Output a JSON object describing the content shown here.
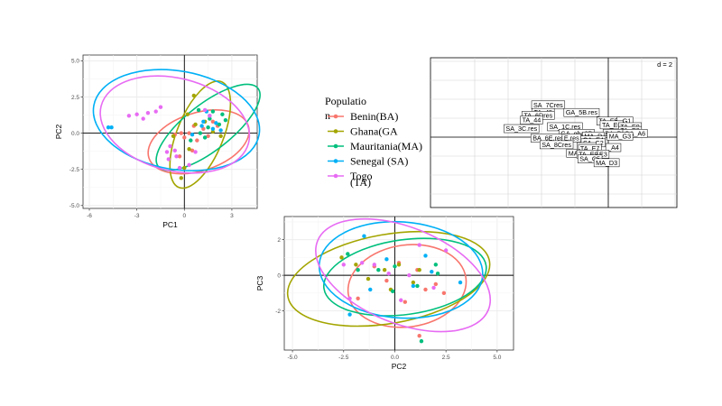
{
  "legend": {
    "title_line1": "Populatio",
    "title_line2": "n",
    "entries": [
      {
        "label": "Benin(BA)",
        "color": "#F8766D"
      },
      {
        "label": "Ghana(GA",
        "color": "#A3A500"
      },
      {
        "label": "Mauritania(MA)",
        "color": "#00BF7D"
      },
      {
        "label": "Senegal (SA)",
        "color": "#00B0F6"
      },
      {
        "label": "Togo",
        "color": "#E76BF3"
      }
    ],
    "extra_line": "(TA)"
  },
  "chart_data": [
    {
      "type": "scatter",
      "xlabel": "PC1",
      "ylabel": "PC2",
      "xlim": [
        -6.4,
        4.6
      ],
      "ylim": [
        -5.2,
        5.4
      ],
      "xticks": [
        -6,
        -3,
        0,
        3
      ],
      "yticks": [
        -5.0,
        -2.5,
        0.0,
        2.5,
        5.0
      ],
      "ytick_labels": [
        "-5.0",
        "-2.5",
        "0.0",
        "2.5",
        "5.0"
      ],
      "grid": true,
      "series": [
        {
          "name": "Benin(BA)",
          "color": "#F8766D",
          "points": [
            [
              -0.2,
              0.0
            ],
            [
              0.3,
              0.0
            ],
            [
              1.2,
              0.3
            ],
            [
              0.8,
              -0.5
            ],
            [
              1.8,
              0.8
            ],
            [
              -0.6,
              -0.1
            ],
            [
              0.5,
              -1.2
            ],
            [
              1.5,
              -0.2
            ],
            [
              0.0,
              -0.3
            ],
            [
              -0.3,
              -1.6
            ],
            [
              0.6,
              0.5
            ],
            [
              2.1,
              0.5
            ]
          ],
          "ellipse": {
            "cx": 0.9,
            "cy": -0.6,
            "rx": 3.3,
            "ry": 2.0,
            "angle": 18
          }
        },
        {
          "name": "Ghana(GA",
          "color": "#A3A500",
          "points": [
            [
              -0.7,
              -0.2
            ],
            [
              0.3,
              -1.1
            ],
            [
              0.0,
              -2.4
            ],
            [
              0.7,
              0.6
            ],
            [
              1.3,
              0.8
            ],
            [
              2.3,
              -0.2
            ],
            [
              0.6,
              2.6
            ],
            [
              -0.2,
              -3.1
            ],
            [
              1.8,
              0.1
            ],
            [
              0.2,
              1.3
            ]
          ],
          "ellipse": {
            "cx": 1.0,
            "cy": -0.1,
            "rx": 3.6,
            "ry": 1.6,
            "angle": 68
          }
        },
        {
          "name": "Mauritania(MA)",
          "color": "#00BF7D",
          "points": [
            [
              1.0,
              0.0
            ],
            [
              1.6,
              1.0
            ],
            [
              2.2,
              0.6
            ],
            [
              0.4,
              -0.5
            ],
            [
              1.8,
              1.5
            ],
            [
              2.4,
              1.3
            ],
            [
              0.9,
              1.6
            ],
            [
              1.3,
              -0.3
            ],
            [
              2.6,
              0.9
            ],
            [
              1.5,
              0.4
            ]
          ],
          "ellipse": {
            "cx": 1.5,
            "cy": 0.4,
            "rx": 4.0,
            "ry": 1.6,
            "angle": 38
          }
        },
        {
          "name": "Senegal (SA)",
          "color": "#00B0F6",
          "points": [
            [
              -4.8,
              0.4
            ],
            [
              -4.6,
              0.4
            ],
            [
              1.2,
              0.8
            ],
            [
              1.8,
              0.3
            ],
            [
              1.6,
              1.2
            ],
            [
              2.0,
              0.7
            ],
            [
              2.3,
              0.2
            ],
            [
              1.4,
              1.5
            ],
            [
              0.5,
              -0.1
            ],
            [
              1.1,
              0.5
            ]
          ],
          "ellipse": {
            "cx": -0.5,
            "cy": 0.9,
            "rx": 5.3,
            "ry": 3.4,
            "angle": -10
          }
        },
        {
          "name": "Togo",
          "color": "#E76BF3",
          "points": [
            [
              -3.5,
              1.2
            ],
            [
              -3.0,
              1.3
            ],
            [
              -2.6,
              1.0
            ],
            [
              -2.3,
              1.4
            ],
            [
              -1.8,
              1.5
            ],
            [
              -1.5,
              1.8
            ],
            [
              -1.1,
              -1.3
            ],
            [
              -0.5,
              -1.6
            ],
            [
              -0.9,
              -0.9
            ],
            [
              -0.3,
              -2.4
            ],
            [
              0.3,
              -2.2
            ],
            [
              1.3,
              1.6
            ],
            [
              1.6,
              1.2
            ],
            [
              0.7,
              -1.3
            ],
            [
              -1.0,
              -1.8
            ],
            [
              -0.6,
              -1.2
            ]
          ],
          "ellipse": {
            "cx": -0.6,
            "cy": 0.6,
            "rx": 4.8,
            "ry": 3.2,
            "angle": -14
          }
        }
      ]
    },
    {
      "type": "scatter",
      "xlabel": "PC2",
      "ylabel": "PC3",
      "xlim": [
        -5.4,
        5.8
      ],
      "ylim": [
        -4.2,
        3.3
      ],
      "xticks": [
        -5.0,
        -2.5,
        0.0,
        2.5,
        5.0
      ],
      "xtick_labels": [
        "-5.0",
        "-2.5",
        "0.0",
        "2.5",
        "5.0"
      ],
      "yticks": [
        -2,
        0,
        2
      ],
      "grid": true,
      "series": [
        {
          "name": "Benin(BA)",
          "color": "#F8766D",
          "points": [
            [
              -1.0,
              0.5
            ],
            [
              -0.4,
              -0.3
            ],
            [
              0.2,
              0.7
            ],
            [
              1.1,
              0.3
            ],
            [
              1.5,
              -0.8
            ],
            [
              2.0,
              -0.5
            ],
            [
              -1.8,
              -1.3
            ],
            [
              0.5,
              -1.5
            ],
            [
              2.4,
              -1.0
            ],
            [
              1.2,
              -3.4
            ]
          ],
          "ellipse": {
            "cx": 0.6,
            "cy": -0.6,
            "rx": 2.9,
            "ry": 2.3,
            "angle": 8
          }
        },
        {
          "name": "Ghana(GA",
          "color": "#A3A500",
          "points": [
            [
              -2.6,
              1.0
            ],
            [
              -1.9,
              0.6
            ],
            [
              -0.5,
              0.3
            ],
            [
              0.2,
              0.6
            ],
            [
              0.9,
              -0.4
            ],
            [
              -0.2,
              -0.8
            ],
            [
              1.2,
              0.3
            ],
            [
              -1.3,
              -0.2
            ]
          ],
          "ellipse": {
            "cx": -0.3,
            "cy": -0.2,
            "rx": 5.0,
            "ry": 2.5,
            "angle": 10
          }
        },
        {
          "name": "Mauritania(MA)",
          "color": "#00BF7D",
          "points": [
            [
              -2.3,
              1.2
            ],
            [
              -1.8,
              0.3
            ],
            [
              0.0,
              0.5
            ],
            [
              1.1,
              -0.6
            ],
            [
              2.1,
              0.1
            ],
            [
              -0.1,
              -0.9
            ],
            [
              1.3,
              -3.7
            ],
            [
              -0.8,
              0.3
            ],
            [
              2.0,
              0.6
            ]
          ],
          "ellipse": {
            "cx": 0.5,
            "cy": -0.1,
            "rx": 4.0,
            "ry": 2.1,
            "angle": 8
          }
        },
        {
          "name": "Senegal (SA)",
          "color": "#00B0F6",
          "points": [
            [
              -1.5,
              2.2
            ],
            [
              1.5,
              1.1
            ],
            [
              -2.2,
              -2.2
            ],
            [
              0.9,
              -0.6
            ],
            [
              3.2,
              -0.4
            ],
            [
              -0.4,
              0.9
            ],
            [
              1.8,
              0.2
            ],
            [
              -1.2,
              -0.8
            ]
          ],
          "ellipse": {
            "cx": 0.3,
            "cy": 0.3,
            "rx": 4.0,
            "ry": 2.7,
            "angle": -4
          }
        },
        {
          "name": "Togo",
          "color": "#E76BF3",
          "points": [
            [
              -2.5,
              0.6
            ],
            [
              -1.0,
              0.6
            ],
            [
              -0.3,
              0.1
            ],
            [
              0.7,
              0.0
            ],
            [
              1.2,
              1.7
            ],
            [
              1.9,
              -0.7
            ],
            [
              2.5,
              1.4
            ],
            [
              -1.6,
              0.7
            ],
            [
              -2.2,
              -1.3
            ],
            [
              0.3,
              -1.4
            ]
          ],
          "ellipse": {
            "cx": 0.4,
            "cy": 0.0,
            "rx": 4.5,
            "ry": 2.7,
            "angle": -22
          }
        }
      ]
    },
    {
      "type": "scatter",
      "scale_label": "d = 2",
      "labels": [
        {
          "text": "SA_7Cres",
          "x": -3.6,
          "y": 3.4
        },
        {
          "text": "TA_45",
          "x": -3.9,
          "y": 2.6
        },
        {
          "text": "TA_6Dres",
          "x": -4.2,
          "y": 2.3
        },
        {
          "text": "GA_5B.res",
          "x": -1.6,
          "y": 2.6
        },
        {
          "text": "TA_44",
          "x": -4.6,
          "y": 1.8
        },
        {
          "text": "SA_3C.res",
          "x": -5.2,
          "y": 0.9
        },
        {
          "text": "SA_1C.res",
          "x": -2.6,
          "y": 1.1
        },
        {
          "text": "TA_E5",
          "x": 0.0,
          "y": 1.7
        },
        {
          "text": "_G1",
          "x": 1.0,
          "y": 1.7
        },
        {
          "text": "TA_E6",
          "x": 0.2,
          "y": 1.3
        },
        {
          "text": "TA_E8",
          "x": 1.3,
          "y": 1.1
        },
        {
          "text": "TA_E2",
          "x": 1.3,
          "y": 0.7
        },
        {
          "text": "GA_gha3B",
          "x": -1.9,
          "y": 0.4
        },
        {
          "text": "BA_B2",
          "x": 0.4,
          "y": 0.4
        },
        {
          "text": "GA_A6",
          "x": 1.6,
          "y": 0.4
        },
        {
          "text": "MA_D",
          "x": -0.9,
          "y": 0.1
        },
        {
          "text": "MA_G3",
          "x": 0.7,
          "y": 0.1
        },
        {
          "text": "BA_6E.res",
          "x": -3.6,
          "y": -0.1
        },
        {
          "text": "E.res",
          "x": -2.2,
          "y": -0.1
        },
        {
          "text": "GA_E4",
          "x": -0.9,
          "y": -0.3
        },
        {
          "text": "SA_C2",
          "x": -0.9,
          "y": -0.6
        },
        {
          "text": "SA_8Cres",
          "x": -3.1,
          "y": -0.8
        },
        {
          "text": "TA_E",
          "x": -1.3,
          "y": -1.0
        },
        {
          "text": "_A4",
          "x": 0.3,
          "y": -1.1
        },
        {
          "text": "TA_E7",
          "x": -1.1,
          "y": -1.2
        },
        {
          "text": "MA",
          "x": -2.1,
          "y": -1.7
        },
        {
          "text": "TA_E9",
          "x": -1.2,
          "y": -1.8
        },
        {
          "text": "E3",
          "x": -0.3,
          "y": -1.8
        },
        {
          "text": "SA_C5",
          "x": -1.1,
          "y": -2.3
        },
        {
          "text": "MA_D3",
          "x": -0.1,
          "y": -2.7
        }
      ]
    }
  ]
}
